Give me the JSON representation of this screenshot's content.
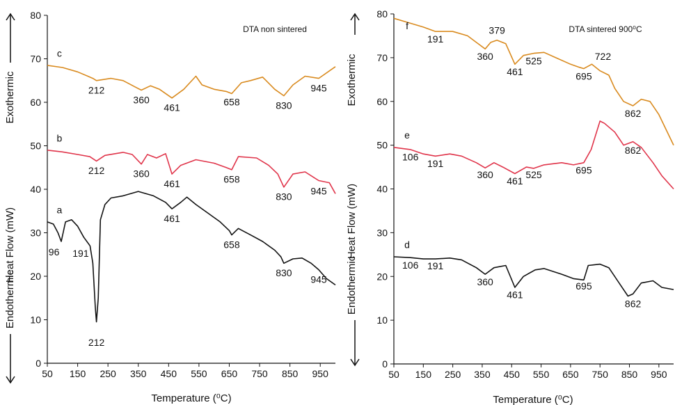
{
  "colors": {
    "a": "#111111",
    "b": "#e0344a",
    "c": "#d98a1e",
    "axis": "#111111"
  },
  "chart_data": [
    {
      "type": "line",
      "title": "DTA non sintered",
      "xlabel": "Temperature (⁰C)",
      "ylabel": "Heat Flow (mW)",
      "exo_label": "Exothermic",
      "endo_label": "Endothermic",
      "xlim": [
        50,
        1000
      ],
      "ylim": [
        0,
        80
      ],
      "xticks": [
        "50",
        "150",
        "250",
        "350",
        "450",
        "550",
        "650",
        "750",
        "850",
        "950"
      ],
      "yticks": [
        "0",
        "10",
        "20",
        "30",
        "40",
        "50",
        "60",
        "70",
        "80"
      ],
      "series": [
        {
          "name": "c",
          "color_key": "c",
          "points": [
            [
              50,
              68.5
            ],
            [
              100,
              68
            ],
            [
              150,
              67
            ],
            [
              200,
              65.5
            ],
            [
              212,
              65
            ],
            [
              260,
              65.5
            ],
            [
              300,
              65
            ],
            [
              340,
              63.5
            ],
            [
              360,
              62.8
            ],
            [
              390,
              63.8
            ],
            [
              420,
              63
            ],
            [
              461,
              61
            ],
            [
              500,
              63
            ],
            [
              540,
              66
            ],
            [
              560,
              64
            ],
            [
              600,
              63
            ],
            [
              640,
              62.5
            ],
            [
              658,
              62
            ],
            [
              690,
              64.5
            ],
            [
              720,
              65
            ],
            [
              760,
              65.8
            ],
            [
              800,
              63
            ],
            [
              830,
              61.5
            ],
            [
              860,
              64
            ],
            [
              900,
              66
            ],
            [
              945,
              65.5
            ],
            [
              1000,
              68.2
            ]
          ]
        },
        {
          "name": "b",
          "color_key": "b",
          "points": [
            [
              50,
              49
            ],
            [
              100,
              48.6
            ],
            [
              150,
              48
            ],
            [
              190,
              47.5
            ],
            [
              212,
              46.5
            ],
            [
              240,
              47.8
            ],
            [
              300,
              48.5
            ],
            [
              330,
              48
            ],
            [
              360,
              45.8
            ],
            [
              380,
              48
            ],
            [
              410,
              47.2
            ],
            [
              440,
              48.2
            ],
            [
              461,
              43.5
            ],
            [
              490,
              45.5
            ],
            [
              540,
              46.8
            ],
            [
              600,
              46
            ],
            [
              640,
              45
            ],
            [
              658,
              44.5
            ],
            [
              680,
              47.5
            ],
            [
              740,
              47.2
            ],
            [
              780,
              45.5
            ],
            [
              810,
              43.5
            ],
            [
              830,
              40.5
            ],
            [
              860,
              43.5
            ],
            [
              900,
              44
            ],
            [
              945,
              42
            ],
            [
              980,
              41.5
            ],
            [
              1000,
              39
            ]
          ]
        },
        {
          "name": "a",
          "color_key": "a",
          "points": [
            [
              50,
              32.5
            ],
            [
              70,
              32
            ],
            [
              85,
              30
            ],
            [
              96,
              28
            ],
            [
              110,
              32.5
            ],
            [
              130,
              33
            ],
            [
              150,
              31.5
            ],
            [
              170,
              29
            ],
            [
              191,
              27
            ],
            [
              200,
              23
            ],
            [
              208,
              13
            ],
            [
              212,
              9.5
            ],
            [
              218,
              15
            ],
            [
              225,
              33
            ],
            [
              240,
              36.5
            ],
            [
              260,
              38
            ],
            [
              300,
              38.5
            ],
            [
              350,
              39.5
            ],
            [
              400,
              38.5
            ],
            [
              440,
              37
            ],
            [
              461,
              35.5
            ],
            [
              490,
              37
            ],
            [
              510,
              38.2
            ],
            [
              540,
              36.5
            ],
            [
              580,
              34.5
            ],
            [
              620,
              32.5
            ],
            [
              650,
              30.5
            ],
            [
              658,
              29.5
            ],
            [
              680,
              31
            ],
            [
              720,
              29.5
            ],
            [
              760,
              28
            ],
            [
              800,
              26
            ],
            [
              820,
              24.5
            ],
            [
              830,
              23
            ],
            [
              860,
              24
            ],
            [
              890,
              24.2
            ],
            [
              920,
              23
            ],
            [
              945,
              21.5
            ],
            [
              970,
              19.5
            ],
            [
              1000,
              18
            ]
          ]
        }
      ],
      "annotations": [
        {
          "series": "c",
          "label": "c",
          "x": 90,
          "y": 70.5
        },
        {
          "series": "c",
          "label": "212",
          "x": 212,
          "y": 62
        },
        {
          "series": "c",
          "label": "360",
          "x": 360,
          "y": 59.8
        },
        {
          "series": "c",
          "label": "461",
          "x": 461,
          "y": 58
        },
        {
          "series": "c",
          "label": "658",
          "x": 658,
          "y": 59.3
        },
        {
          "series": "c",
          "label": "830",
          "x": 830,
          "y": 58.5
        },
        {
          "series": "c",
          "label": "945",
          "x": 945,
          "y": 62.5
        },
        {
          "series": "b",
          "label": "b",
          "x": 90,
          "y": 51
        },
        {
          "series": "b",
          "label": "212",
          "x": 212,
          "y": 43.5
        },
        {
          "series": "b",
          "label": "360",
          "x": 360,
          "y": 42.8
        },
        {
          "series": "b",
          "label": "461",
          "x": 461,
          "y": 40.5
        },
        {
          "series": "b",
          "label": "658",
          "x": 658,
          "y": 41.5
        },
        {
          "series": "b",
          "label": "830",
          "x": 830,
          "y": 37.5
        },
        {
          "series": "b",
          "label": "945",
          "x": 945,
          "y": 38.8
        },
        {
          "series": "a",
          "label": "a",
          "x": 90,
          "y": 34.5
        },
        {
          "series": "a",
          "label": "96",
          "x": 72,
          "y": 24.8
        },
        {
          "series": "a",
          "label": "191",
          "x": 160,
          "y": 24.5
        },
        {
          "series": "a",
          "label": "212",
          "x": 212,
          "y": 4
        },
        {
          "series": "a",
          "label": "461",
          "x": 461,
          "y": 32.5
        },
        {
          "series": "a",
          "label": "658",
          "x": 658,
          "y": 26.5
        },
        {
          "series": "a",
          "label": "830",
          "x": 830,
          "y": 20
        },
        {
          "series": "a",
          "label": "945",
          "x": 945,
          "y": 18.5
        }
      ]
    },
    {
      "type": "line",
      "title": "DTA sintered 900⁰C",
      "xlabel": "Temperature (⁰C)",
      "ylabel": "Heat Flow (mW)",
      "exo_label": "Exothermic",
      "endo_label": "Endothermic",
      "xlim": [
        50,
        1000
      ],
      "ylim": [
        0,
        80
      ],
      "xticks": [
        "50",
        "150",
        "250",
        "350",
        "450",
        "550",
        "650",
        "750",
        "850",
        "950"
      ],
      "yticks": [
        "0",
        "10",
        "20",
        "30",
        "40",
        "50",
        "60",
        "70",
        "80"
      ],
      "series": [
        {
          "name": "f",
          "color_key": "c",
          "points": [
            [
              50,
              79
            ],
            [
              100,
              78
            ],
            [
              150,
              77
            ],
            [
              191,
              76
            ],
            [
              250,
              76
            ],
            [
              300,
              75
            ],
            [
              340,
              73
            ],
            [
              360,
              72
            ],
            [
              379,
              73.5
            ],
            [
              400,
              74
            ],
            [
              430,
              73.2
            ],
            [
              461,
              68.5
            ],
            [
              490,
              70.5
            ],
            [
              525,
              71
            ],
            [
              560,
              71.2
            ],
            [
              600,
              70
            ],
            [
              650,
              68.5
            ],
            [
              680,
              67.8
            ],
            [
              695,
              67.5
            ],
            [
              722,
              68.5
            ],
            [
              750,
              67
            ],
            [
              780,
              66
            ],
            [
              800,
              63
            ],
            [
              830,
              60
            ],
            [
              862,
              59
            ],
            [
              890,
              60.5
            ],
            [
              920,
              60
            ],
            [
              950,
              57
            ],
            [
              1000,
              50
            ]
          ]
        },
        {
          "name": "e",
          "color_key": "b",
          "points": [
            [
              50,
              49.5
            ],
            [
              106,
              49
            ],
            [
              150,
              48
            ],
            [
              191,
              47.5
            ],
            [
              240,
              48
            ],
            [
              280,
              47.5
            ],
            [
              330,
              46
            ],
            [
              360,
              44.8
            ],
            [
              390,
              46
            ],
            [
              420,
              45
            ],
            [
              461,
              43.5
            ],
            [
              500,
              45
            ],
            [
              525,
              44.7
            ],
            [
              560,
              45.5
            ],
            [
              620,
              46
            ],
            [
              660,
              45.5
            ],
            [
              695,
              46
            ],
            [
              720,
              49
            ],
            [
              750,
              55.5
            ],
            [
              765,
              55
            ],
            [
              800,
              53
            ],
            [
              830,
              50
            ],
            [
              862,
              50.8
            ],
            [
              890,
              49.5
            ],
            [
              930,
              46
            ],
            [
              960,
              43
            ],
            [
              1000,
              40
            ]
          ]
        },
        {
          "name": "d",
          "color_key": "a",
          "points": [
            [
              50,
              24.5
            ],
            [
              106,
              24.3
            ],
            [
              150,
              24
            ],
            [
              191,
              24
            ],
            [
              240,
              24.2
            ],
            [
              280,
              23.8
            ],
            [
              330,
              22
            ],
            [
              360,
              20.5
            ],
            [
              390,
              22
            ],
            [
              430,
              22.5
            ],
            [
              461,
              17.5
            ],
            [
              490,
              20
            ],
            [
              530,
              21.5
            ],
            [
              560,
              21.8
            ],
            [
              620,
              20.5
            ],
            [
              660,
              19.5
            ],
            [
              695,
              19.2
            ],
            [
              710,
              22.5
            ],
            [
              750,
              22.8
            ],
            [
              780,
              22
            ],
            [
              820,
              18
            ],
            [
              845,
              15.5
            ],
            [
              862,
              16
            ],
            [
              890,
              18.5
            ],
            [
              930,
              19
            ],
            [
              960,
              17.5
            ],
            [
              1000,
              17
            ]
          ]
        }
      ],
      "annotations": [
        {
          "series": "f",
          "label": "f",
          "x": 95,
          "y": 76.5
        },
        {
          "series": "f",
          "label": "191",
          "x": 191,
          "y": 73.5
        },
        {
          "series": "f",
          "label": "360",
          "x": 360,
          "y": 69.5
        },
        {
          "series": "f",
          "label": "379",
          "x": 400,
          "y": 75.5
        },
        {
          "series": "f",
          "label": "461",
          "x": 461,
          "y": 66
        },
        {
          "series": "f",
          "label": "525",
          "x": 525,
          "y": 68.5
        },
        {
          "series": "f",
          "label": "695",
          "x": 695,
          "y": 65
        },
        {
          "series": "f",
          "label": "722",
          "x": 760,
          "y": 69.5
        },
        {
          "series": "f",
          "label": "862",
          "x": 862,
          "y": 56.5
        },
        {
          "series": "e",
          "label": "e",
          "x": 95,
          "y": 51.5
        },
        {
          "series": "e",
          "label": "106",
          "x": 106,
          "y": 46.5
        },
        {
          "series": "e",
          "label": "191",
          "x": 191,
          "y": 45
        },
        {
          "series": "e",
          "label": "360",
          "x": 360,
          "y": 42.5
        },
        {
          "series": "e",
          "label": "461",
          "x": 461,
          "y": 41
        },
        {
          "series": "e",
          "label": "525",
          "x": 525,
          "y": 42.5
        },
        {
          "series": "e",
          "label": "695",
          "x": 695,
          "y": 43.5
        },
        {
          "series": "e",
          "label": "862",
          "x": 862,
          "y": 48
        },
        {
          "series": "d",
          "label": "d",
          "x": 95,
          "y": 26.5
        },
        {
          "series": "d",
          "label": "106",
          "x": 106,
          "y": 21.8
        },
        {
          "series": "d",
          "label": "191",
          "x": 191,
          "y": 21.6
        },
        {
          "series": "d",
          "label": "360",
          "x": 360,
          "y": 18
        },
        {
          "series": "d",
          "label": "461",
          "x": 461,
          "y": 15
        },
        {
          "series": "d",
          "label": "695",
          "x": 695,
          "y": 17
        },
        {
          "series": "d",
          "label": "862",
          "x": 862,
          "y": 13
        }
      ]
    }
  ]
}
